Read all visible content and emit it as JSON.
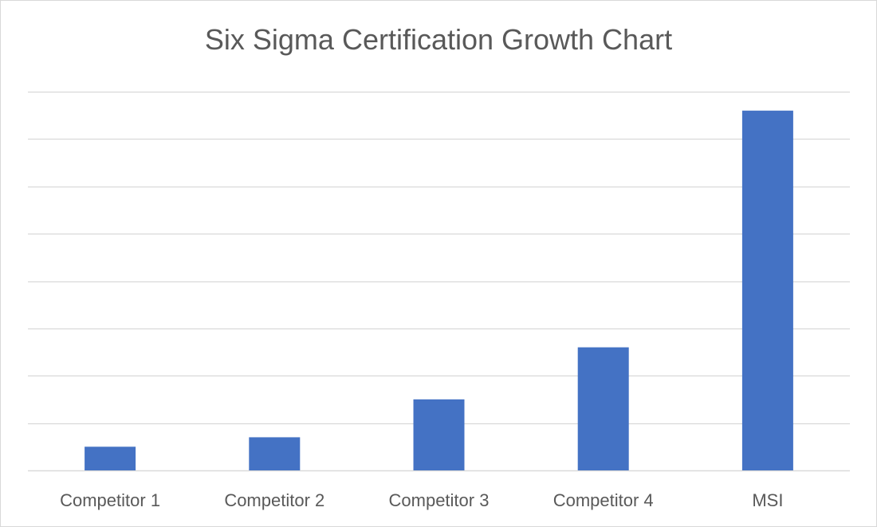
{
  "chart_data": {
    "type": "bar",
    "title": "Six Sigma Certification Growth Chart",
    "xlabel": "",
    "ylabel": "",
    "categories": [
      "Competitor 1",
      "Competitor 2",
      "Competitor 3",
      "Competitor 4",
      "MSI"
    ],
    "values": [
      0.5,
      0.7,
      1.5,
      2.6,
      7.6
    ],
    "ylim": [
      0,
      8
    ],
    "grid": true,
    "gridlines": 8,
    "legend": "none",
    "series_color": "#4472C4",
    "grid_color": "#d9d9d9",
    "text_color": "#595959"
  }
}
